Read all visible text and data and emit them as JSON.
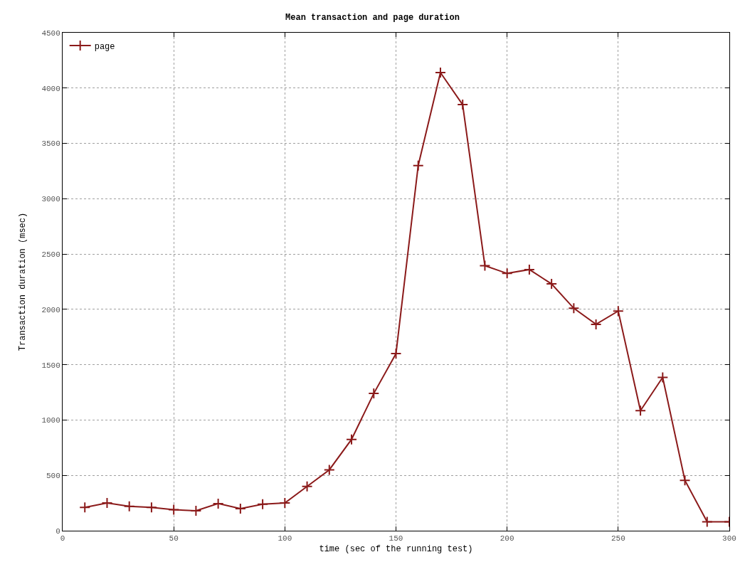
{
  "chart_data": {
    "type": "line",
    "title": "Mean transaction and page duration",
    "xlabel": "time (sec of the running test)",
    "ylabel": "Transaction duration (msec)",
    "x": [
      10,
      20,
      30,
      40,
      50,
      60,
      70,
      80,
      90,
      100,
      110,
      120,
      130,
      140,
      150,
      160,
      170,
      180,
      190,
      200,
      210,
      220,
      230,
      240,
      250,
      260,
      270,
      280,
      290,
      300
    ],
    "series": [
      {
        "name": "page",
        "color": "#8b1a1a",
        "values": [
          210,
          250,
          220,
          210,
          190,
          180,
          245,
          200,
          240,
          250,
          400,
          550,
          825,
          1240,
          1600,
          3300,
          4140,
          3850,
          2395,
          2325,
          2360,
          2230,
          2010,
          1865,
          1985,
          1085,
          1385,
          455,
          80,
          80
        ]
      }
    ],
    "xlim": [
      0,
      300
    ],
    "xticks": [
      0,
      50,
      100,
      150,
      200,
      250,
      300
    ],
    "ylim": [
      0,
      4500
    ],
    "yticks": [
      0,
      500,
      1000,
      1500,
      2000,
      2500,
      3000,
      3500,
      4000,
      4500
    ],
    "grid": true,
    "legend": "top left",
    "marker": "cross",
    "line_style": "solid"
  }
}
